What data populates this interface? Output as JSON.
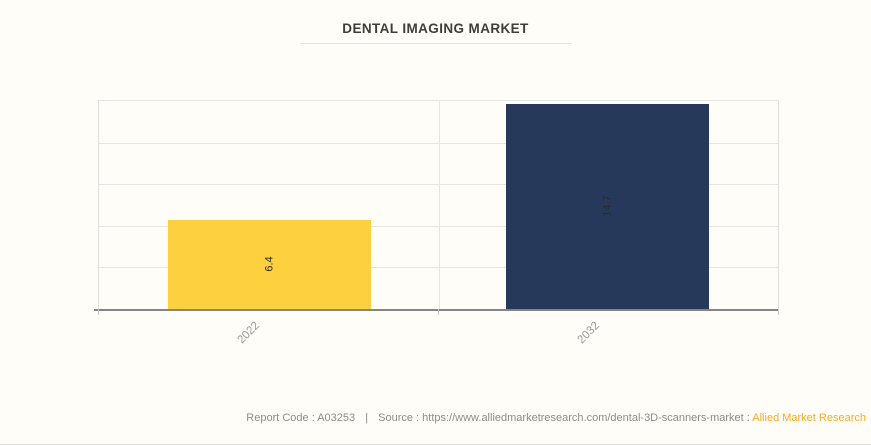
{
  "title": "DENTAL IMAGING MARKET",
  "chart_data": {
    "type": "bar",
    "title": "DENTAL IMAGING MARKET",
    "categories": [
      "2022",
      "2032"
    ],
    "values": [
      6.4,
      14.7
    ],
    "value_labels": [
      "6.4",
      "14.7"
    ],
    "xlabel": "",
    "ylabel": "",
    "ylim": [
      0,
      14.9
    ],
    "grid": true,
    "legend_position": "none",
    "bar_colors": [
      "#FCD03F",
      "#27395A"
    ],
    "value_label_rotation": -90,
    "tick_label_rotation": -45
  },
  "footer": {
    "report_code": "Report Code : A03253",
    "separator": "|",
    "source": "Source : https://www.alliedmarketresearch.com/dental-3D-scanners-market :",
    "brand": "Allied Market Research",
    "brand_color": "#F9A825"
  },
  "colors": {
    "background": "#FFFDF8",
    "title_text": "#3D3D3D",
    "grid_line": "#E7E5E2",
    "axis_line": "#848484",
    "tick_label": "#9A9A9A",
    "bar_label": "#2B2B2B",
    "footer_text": "#8C8C8C"
  }
}
